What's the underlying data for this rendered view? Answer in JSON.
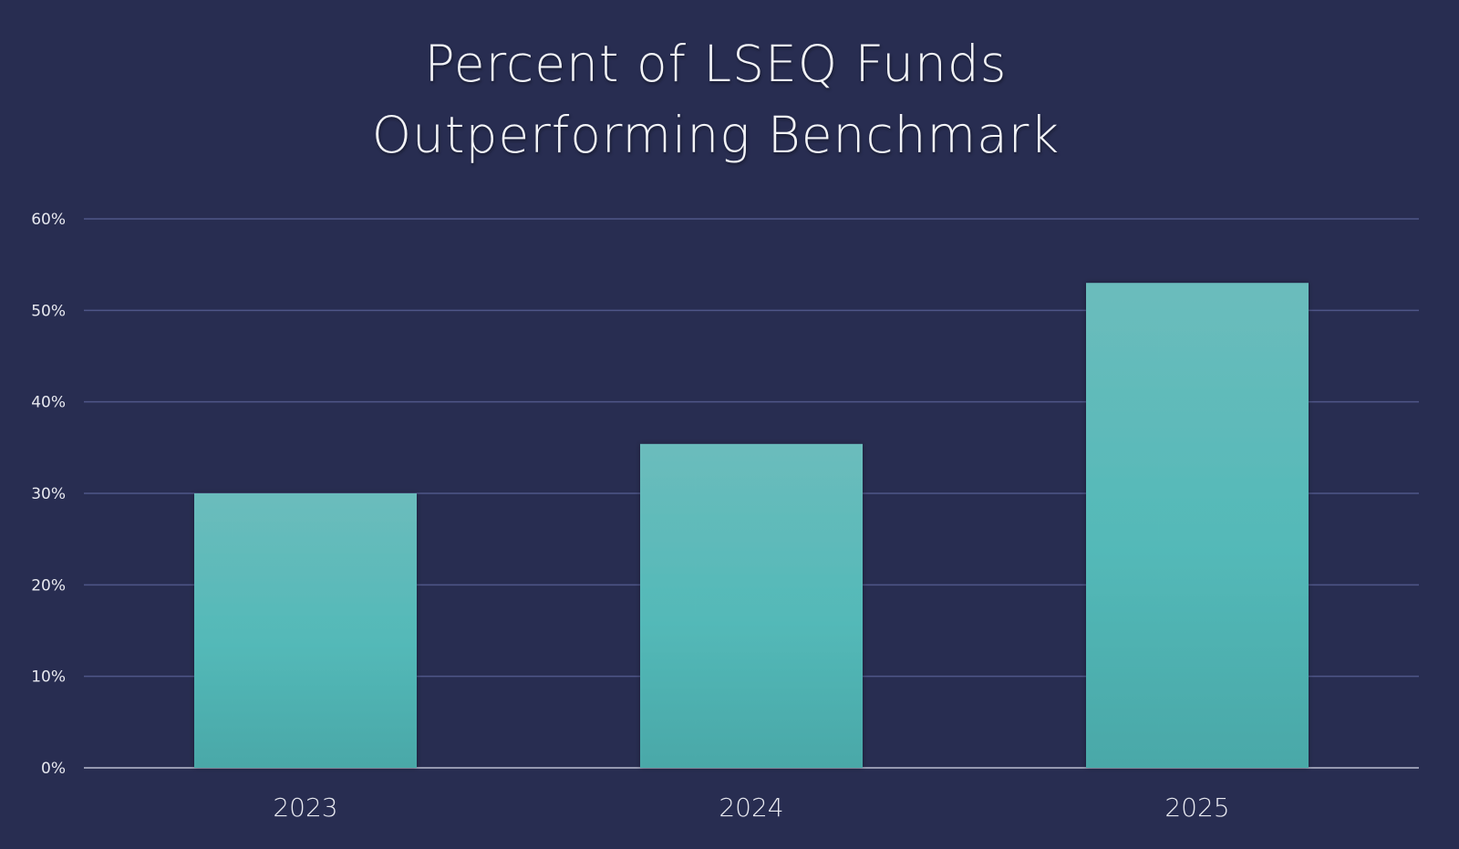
{
  "chart_data": {
    "type": "bar",
    "title": [
      "Percent of LSEQ Funds",
      "Outperforming Benchmark"
    ],
    "categories": [
      "2023",
      "2024",
      "2025"
    ],
    "values": [
      30,
      35.4,
      53
    ],
    "unit": "%",
    "xlabel": "",
    "ylabel": "",
    "ylim": [
      0,
      60
    ],
    "yticks": [
      "0%",
      "10%",
      "20%",
      "30%",
      "40%",
      "50%",
      "60%"
    ],
    "grid": true,
    "legend": "none",
    "colors": {
      "background": "#282d51",
      "bar_top": "#6bbcbc",
      "bar_mid": "#53b9b8",
      "bar_bottom": "#4aa8a8",
      "grid": "#4f5688",
      "text": "#e8e9f0"
    }
  }
}
